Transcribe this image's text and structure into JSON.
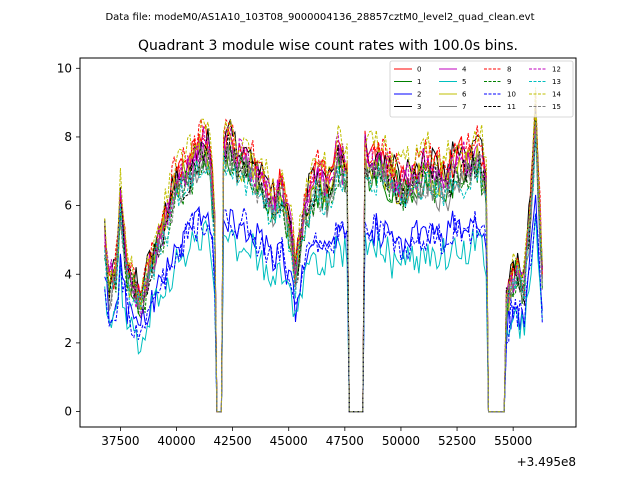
{
  "chart_data": {
    "type": "line",
    "suptitle": "Data file: modeM0/AS1A10_103T08_9000004136_28857cztM0_level2_quad_clean.evt",
    "title": "Quadrant 3 module wise count rates with 100.0s bins.",
    "xlabel": "",
    "ylabel": "",
    "x_offset_label": "+3.495e8",
    "xlim": [
      35700,
      57800
    ],
    "ylim": [
      -0.45,
      10.3
    ],
    "x_ticks": [
      37500,
      40000,
      42500,
      45000,
      47500,
      50000,
      52500,
      55000
    ],
    "x_tick_labels": [
      "37500",
      "40000",
      "42500",
      "45000",
      "47500",
      "50000",
      "52500",
      "55000"
    ],
    "y_ticks": [
      0,
      2,
      4,
      6,
      8,
      10
    ],
    "y_tick_labels": [
      "0",
      "2",
      "4",
      "6",
      "8",
      "10"
    ],
    "grid": false,
    "legend_position": "top-right",
    "bin_width_s": 100,
    "x_start": 36800,
    "x_end": 56300,
    "gaps": [
      [
        41750,
        42050
      ],
      [
        47700,
        48300
      ],
      [
        53900,
        54650
      ]
    ],
    "series": [
      {
        "name": "0",
        "color": "#ff0000",
        "style": "solid",
        "level": 7.5
      },
      {
        "name": "1",
        "color": "#008000",
        "style": "solid",
        "level": 7.0
      },
      {
        "name": "2",
        "color": "#0000ff",
        "style": "solid",
        "level": 5.4
      },
      {
        "name": "3",
        "color": "#000000",
        "style": "solid",
        "level": 7.6
      },
      {
        "name": "4",
        "color": "#bf00bf",
        "style": "solid",
        "level": 7.3
      },
      {
        "name": "5",
        "color": "#00bfbf",
        "style": "solid",
        "level": 4.8
      },
      {
        "name": "6",
        "color": "#bfbf00",
        "style": "solid",
        "level": 7.2
      },
      {
        "name": "7",
        "color": "#808080",
        "style": "solid",
        "level": 6.9
      },
      {
        "name": "8",
        "color": "#ff0000",
        "style": "dashed",
        "level": 7.7
      },
      {
        "name": "9",
        "color": "#008000",
        "style": "dashed",
        "level": 6.9
      },
      {
        "name": "10",
        "color": "#0000ff",
        "style": "dashed",
        "level": 5.3
      },
      {
        "name": "11",
        "color": "#000000",
        "style": "dashed",
        "level": 7.1
      },
      {
        "name": "12",
        "color": "#bf00bf",
        "style": "dashed",
        "level": 7.4
      },
      {
        "name": "13",
        "color": "#00bfbf",
        "style": "dashed",
        "level": 6.8
      },
      {
        "name": "14",
        "color": "#bfbf00",
        "style": "dashed",
        "level": 7.9
      },
      {
        "name": "15",
        "color": "#808080",
        "style": "dashed",
        "level": 7.0
      }
    ],
    "profile": {
      "x": [
        36800,
        37000,
        37300,
        37500,
        37800,
        38100,
        38400,
        38800,
        39200,
        39600,
        40000,
        40400,
        40800,
        41200,
        41500,
        41700,
        42050,
        42300,
        42700,
        43200,
        43700,
        44200,
        44700,
        45100,
        45300,
        45700,
        46200,
        46800,
        47200,
        47650,
        48350,
        48600,
        49000,
        49500,
        50000,
        50500,
        51000,
        51500,
        52000,
        52500,
        53000,
        53500,
        53850,
        54650,
        54900,
        55200,
        55500,
        55800,
        56000,
        56300
      ],
      "shape": [
        0.68,
        0.5,
        0.55,
        0.83,
        0.55,
        0.5,
        0.42,
        0.58,
        0.68,
        0.78,
        0.92,
        0.95,
        1.0,
        1.05,
        1.03,
        0.75,
        1.05,
        1.07,
        1.02,
        1.0,
        0.92,
        0.85,
        0.88,
        0.72,
        0.55,
        0.8,
        0.93,
        0.88,
        1.02,
        0.95,
        1.03,
        0.98,
        1.0,
        0.95,
        0.9,
        0.92,
        0.97,
        0.95,
        0.92,
        1.0,
        0.98,
        1.03,
        0.88,
        0.4,
        0.52,
        0.56,
        0.5,
        0.85,
        1.18,
        0.55
      ]
    }
  }
}
